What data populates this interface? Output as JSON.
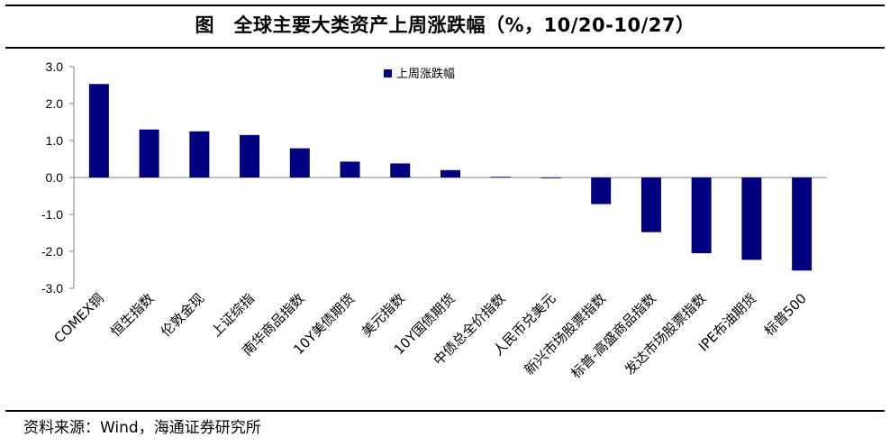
{
  "title": "图　全球主要大类资产上周涨跌幅（%，10/20-10/27）",
  "source": "资料来源：Wind，海通证券研究所",
  "colors": {
    "bar": "#000080",
    "axis": "#808080",
    "text": "#000000"
  },
  "chart_data": {
    "type": "bar",
    "legend": {
      "label": "上周涨跌幅",
      "position": "top-center"
    },
    "categories": [
      "COMEX铜",
      "恒生指数",
      "伦敦金现",
      "上证综指",
      "南华商品指数",
      "10Y美债期货",
      "美元指数",
      "10Y国债期货",
      "中债总全价指数",
      "人民币兑美元",
      "新兴市场股票指数",
      "标普-高盛商品指数",
      "发达市场股票指数",
      "IPE布油期货",
      "标普500"
    ],
    "series": [
      {
        "name": "上周涨跌幅",
        "values": [
          2.53,
          1.3,
          1.25,
          1.15,
          0.79,
          0.43,
          0.38,
          0.2,
          0.02,
          -0.02,
          -0.72,
          -1.48,
          -2.05,
          -2.23,
          -2.52
        ]
      }
    ],
    "yticks": [
      "3.0",
      "2.0",
      "1.0",
      "0.0",
      "-1.0",
      "-2.0",
      "-3.0"
    ],
    "ylim": [
      -3,
      3
    ],
    "grid": false
  }
}
